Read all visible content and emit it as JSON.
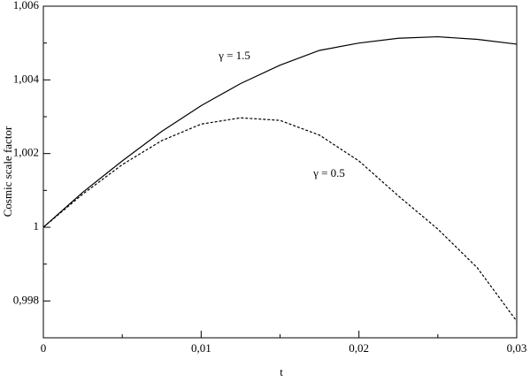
{
  "chart_data": {
    "type": "line",
    "xlabel": "t",
    "ylabel": "Cosmic scale factor",
    "x": [
      0,
      0.0025,
      0.005,
      0.0075,
      0.01,
      0.0125,
      0.015,
      0.0175,
      0.02,
      0.0225,
      0.025,
      0.0275,
      0.03
    ],
    "series": [
      {
        "name": "γ = 1.5",
        "color": "#000000",
        "line_style": "solid",
        "values": [
          1,
          1.00095,
          1.0018,
          1.0026,
          1.0033,
          1.0039,
          1.0044,
          1.0048,
          1.005,
          1.00513,
          1.00517,
          1.0051,
          1.00497
        ]
      },
      {
        "name": "γ = 0.5",
        "color": "#000000",
        "line_style": "dashed",
        "values": [
          1,
          1.0009,
          1.0017,
          1.00235,
          1.0028,
          1.00297,
          1.0029,
          1.0025,
          1.0018,
          1.00085,
          0.99995,
          0.9989,
          0.99745
        ]
      }
    ],
    "xlim": [
      0,
      0.03
    ],
    "xticks": [
      0,
      {
        "value": 0.01,
        "label": "0,01"
      },
      {
        "value": 0.02,
        "label": "0,02"
      },
      {
        "value": 0.03,
        "label": "0,03"
      }
    ],
    "xminorticks": [
      0.005,
      0.015,
      0.025
    ],
    "ylim": [
      0.997,
      1.006
    ],
    "yticks": [
      {
        "value": 0.998,
        "label": "0,998"
      },
      1,
      {
        "value": 1.002,
        "label": "1,002"
      },
      {
        "value": 1.004,
        "label": "1,004"
      },
      {
        "value": 1.006,
        "label": "1,006"
      }
    ],
    "yminorticks": [
      0.999,
      1.001,
      1.003,
      1.005
    ],
    "grid": false
  }
}
